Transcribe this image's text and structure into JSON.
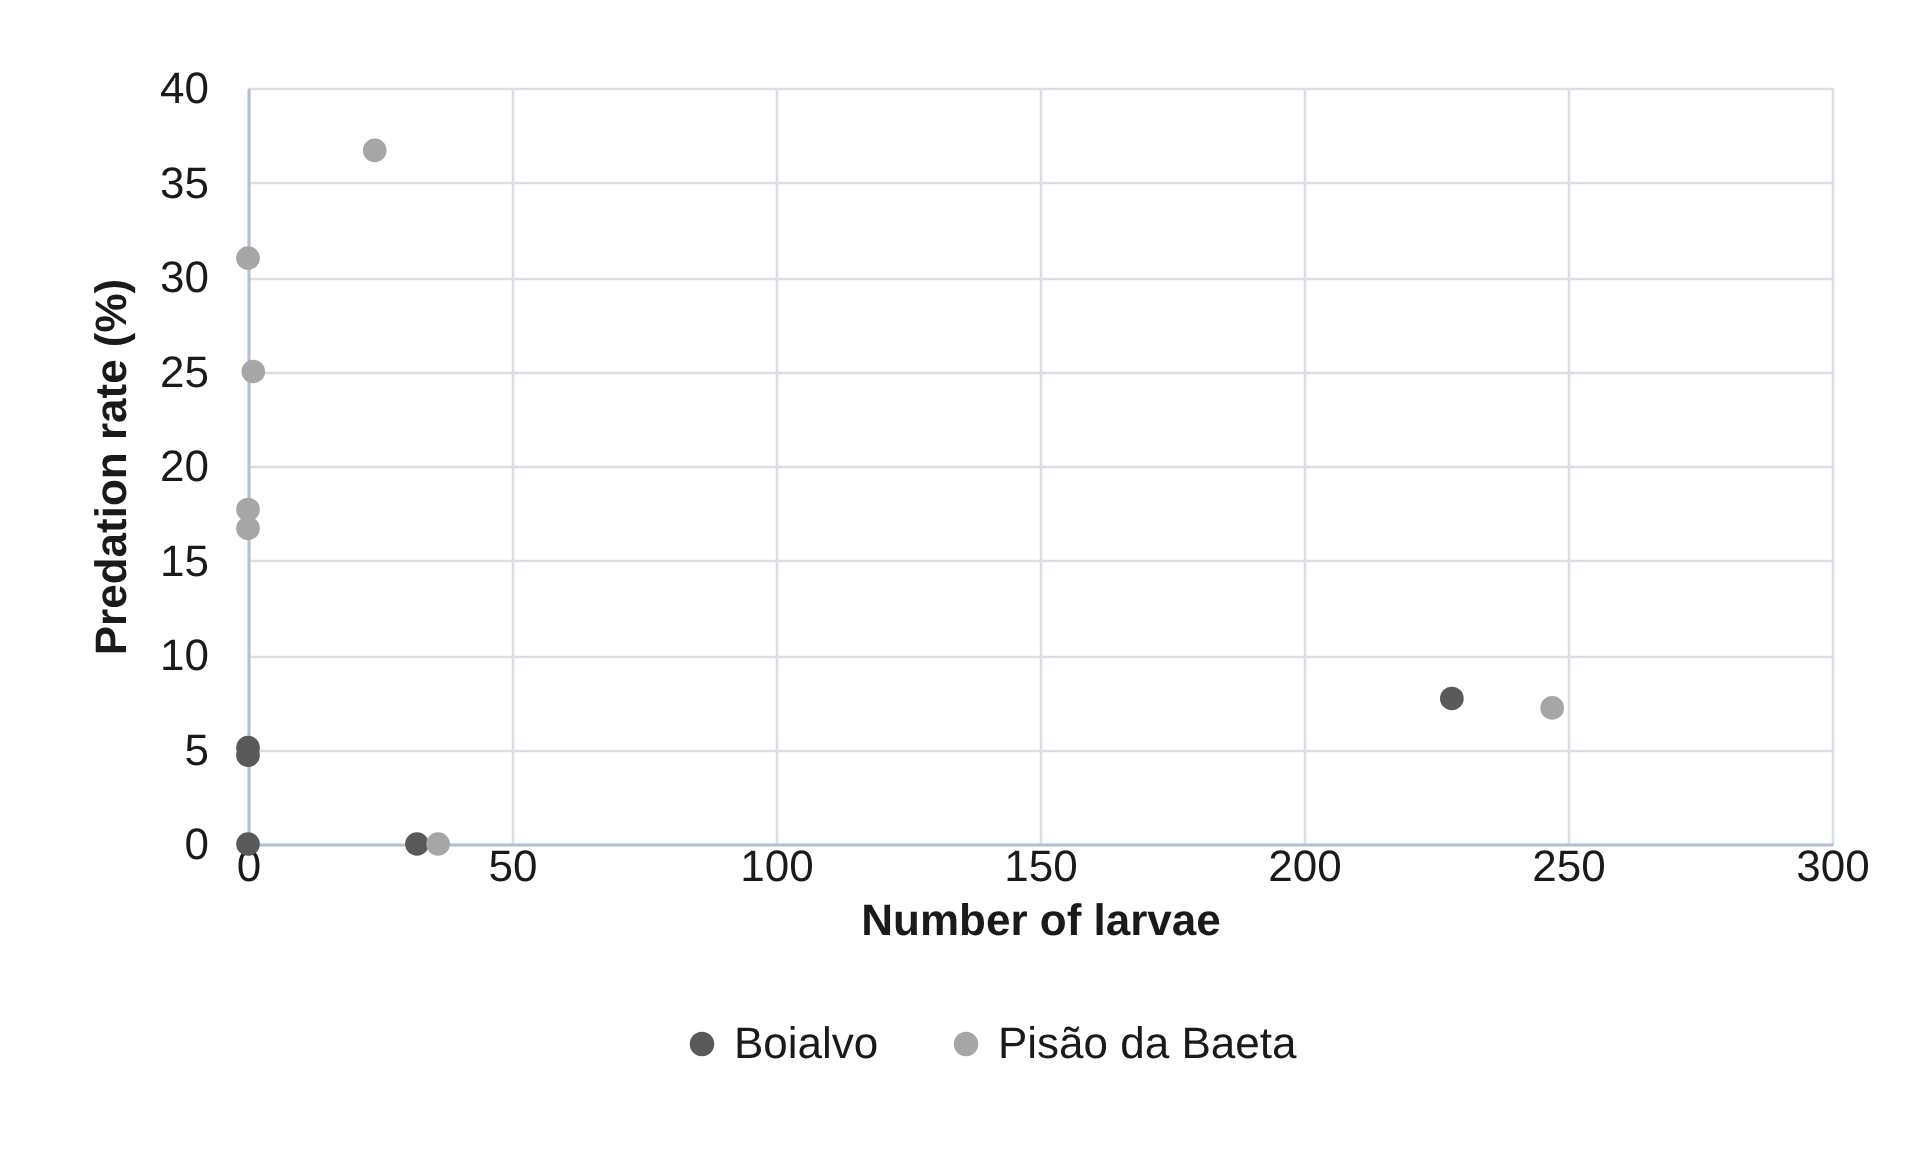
{
  "chart_data": {
    "type": "scatter",
    "xlabel": "Number of larvae",
    "ylabel": "Predation rate (%)",
    "xlim": [
      0,
      300
    ],
    "xticks": [
      0,
      50,
      100,
      150,
      200,
      250,
      300
    ],
    "ylim": [
      0,
      40
    ],
    "yticks": [
      0,
      5,
      10,
      15,
      20,
      25,
      30,
      35,
      40
    ],
    "grid": true,
    "legend": "bottom",
    "marker": "circle",
    "series": [
      {
        "name": "Boialvo",
        "color": "#595959",
        "x": [
          0,
          0,
          0,
          32,
          228
        ],
        "values": [
          0,
          5.1,
          4.7,
          0,
          7.7
        ]
      },
      {
        "name": "Pisão da Baeta",
        "color": "#a6a6a6",
        "x": [
          24,
          0,
          1,
          0,
          0,
          36,
          247
        ],
        "values": [
          36.7,
          31,
          25,
          17.7,
          16.7,
          0,
          7.2
        ]
      }
    ]
  }
}
